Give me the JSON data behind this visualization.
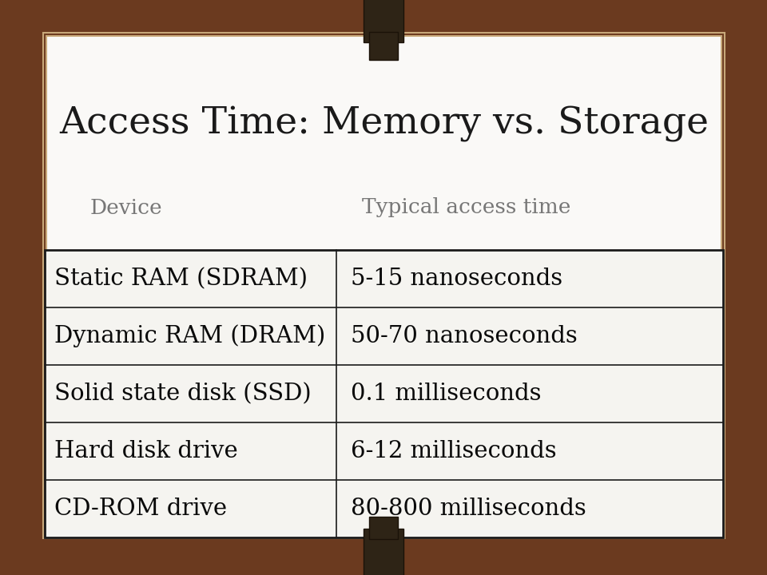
{
  "title": "Access Time: Memory vs. Storage",
  "col_header_device": "Device",
  "col_header_time": "Typical access time",
  "rows": [
    [
      "Static RAM (SDRAM)",
      "5-15 nanoseconds"
    ],
    [
      "Dynamic RAM (DRAM)",
      "50-70 nanoseconds"
    ],
    [
      "Solid state disk (SSD)",
      "0.1 milliseconds"
    ],
    [
      "Hard disk drive",
      "6-12 milliseconds"
    ],
    [
      "CD-ROM drive",
      "80-800 milliseconds"
    ]
  ],
  "bg_color": "#6b3a1f",
  "card_bg": "#faf9f7",
  "card_border_outer": "#c8a87a",
  "card_border_inner": "#c8a87a",
  "table_bg": "#f5f4f0",
  "table_border": "#1a1a1a",
  "title_color": "#1a1a1a",
  "header_color": "#777777",
  "cell_text_color": "#0a0a0a",
  "title_fontsize": 34,
  "header_fontsize": 19,
  "cell_fontsize": 21,
  "divider_color": "#1a1a1a",
  "pin_color": "#2e2416",
  "pin_color2": "#1a1208"
}
